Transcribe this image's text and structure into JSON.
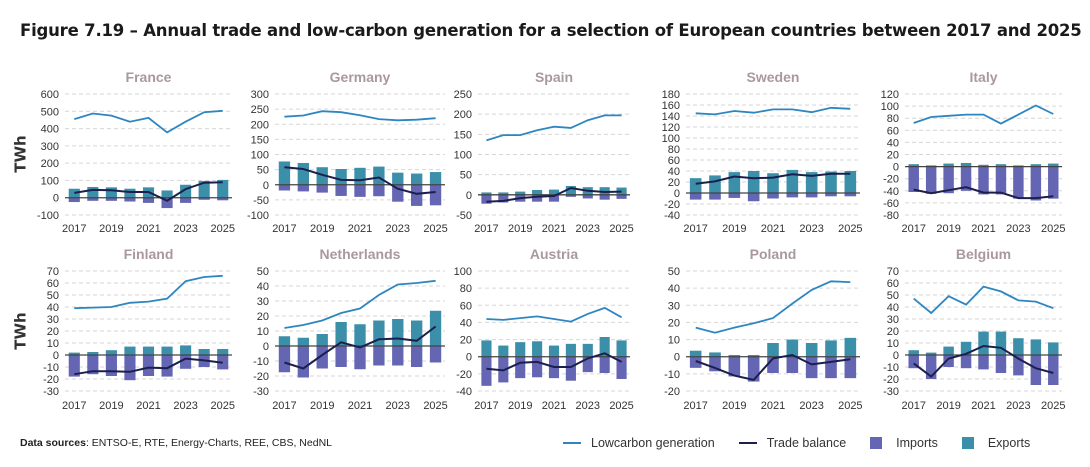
{
  "title": "Figure 7.19 – Annual trade and low-carbon generation for a selection of European countries between 2017 and 2025",
  "y_axis_label": "TWh",
  "sources": {
    "label": "Data sources",
    "text": ": ENTSO-E, RTE, Energy-Charts, REE, CBS, NedNL"
  },
  "legend": [
    {
      "name": "Lowcarbon generation",
      "kind": "line",
      "color": "#2e86c1"
    },
    {
      "name": "Trade balance",
      "kind": "line",
      "color": "#1c1f4d"
    },
    {
      "name": "Imports",
      "kind": "bar",
      "color": "#6466b3"
    },
    {
      "name": "Exports",
      "kind": "bar",
      "color": "#3b8fa9"
    }
  ],
  "chart_data": [
    {
      "type": "bar+line",
      "title": "France",
      "x": [
        2017,
        2018,
        2019,
        2020,
        2021,
        2022,
        2023,
        2024,
        2025
      ],
      "x_ticks": [
        2017,
        2019,
        2021,
        2023,
        2025
      ],
      "ylim": [
        -100,
        600
      ],
      "y_ticks": [
        -100,
        0,
        100,
        200,
        300,
        400,
        500,
        600
      ],
      "grid": true,
      "series": [
        {
          "name": "Lowcarbon generation",
          "values": [
            455,
            487,
            475,
            440,
            462,
            378,
            440,
            495,
            503
          ]
        },
        {
          "name": "Trade balance",
          "values": [
            28,
            45,
            43,
            33,
            33,
            -17,
            50,
            87,
            90
          ]
        },
        {
          "name": "Imports",
          "values": [
            -25,
            -18,
            -18,
            -22,
            -30,
            -60,
            -30,
            -12,
            -15
          ]
        },
        {
          "name": "Exports",
          "values": [
            52,
            62,
            60,
            52,
            60,
            42,
            75,
            97,
            103
          ]
        }
      ]
    },
    {
      "type": "bar+line",
      "title": "Germany",
      "x": [
        2017,
        2018,
        2019,
        2020,
        2021,
        2022,
        2023,
        2024,
        2025
      ],
      "x_ticks": [
        2017,
        2019,
        2021,
        2023,
        2025
      ],
      "ylim": [
        -100,
        300
      ],
      "y_ticks": [
        -100,
        -50,
        0,
        50,
        100,
        150,
        200,
        250,
        300
      ],
      "grid": true,
      "series": [
        {
          "name": "Lowcarbon generation",
          "values": [
            225,
            229,
            243,
            240,
            230,
            217,
            213,
            215,
            220
          ]
        },
        {
          "name": "Trade balance",
          "values": [
            58,
            52,
            33,
            16,
            15,
            24,
            -13,
            -30,
            -24
          ]
        },
        {
          "name": "Imports",
          "values": [
            -19,
            -22,
            -26,
            -37,
            -40,
            -38,
            -56,
            -70,
            -68
          ]
        },
        {
          "name": "Exports",
          "values": [
            77,
            72,
            58,
            52,
            56,
            60,
            40,
            37,
            42
          ]
        }
      ]
    },
    {
      "type": "bar+line",
      "title": "Spain",
      "x": [
        2017,
        2018,
        2019,
        2020,
        2021,
        2022,
        2023,
        2024,
        2025
      ],
      "x_ticks": [
        2017,
        2019,
        2021,
        2023,
        2025
      ],
      "ylim": [
        -50,
        250
      ],
      "y_ticks": [
        -50,
        0,
        50,
        100,
        150,
        200,
        250
      ],
      "grid": true,
      "series": [
        {
          "name": "Lowcarbon generation",
          "values": [
            135,
            148,
            148,
            160,
            169,
            166,
            185,
            197,
            197
          ]
        },
        {
          "name": "Trade balance",
          "values": [
            -17,
            -15,
            -8,
            -5,
            -3,
            17,
            10,
            7,
            8
          ]
        },
        {
          "name": "Imports",
          "values": [
            -22,
            -19,
            -17,
            -17,
            -17,
            -5,
            -9,
            -12,
            -10
          ]
        },
        {
          "name": "Exports",
          "values": [
            6,
            6,
            8,
            12,
            13,
            22,
            19,
            19,
            18
          ]
        }
      ]
    },
    {
      "type": "bar+line",
      "title": "Sweden",
      "x": [
        2017,
        2018,
        2019,
        2020,
        2021,
        2022,
        2023,
        2024,
        2025
      ],
      "x_ticks": [
        2017,
        2019,
        2021,
        2023,
        2025
      ],
      "ylim": [
        -40,
        180
      ],
      "y_ticks": [
        -40,
        -20,
        0,
        20,
        40,
        60,
        80,
        100,
        120,
        140,
        160,
        180
      ],
      "grid": true,
      "series": [
        {
          "name": "Lowcarbon generation",
          "values": [
            145,
            143,
            149,
            146,
            152,
            152,
            147,
            155,
            153
          ]
        },
        {
          "name": "Trade balance",
          "values": [
            17,
            21,
            30,
            27,
            28,
            34,
            31,
            35,
            35
          ]
        },
        {
          "name": "Imports",
          "values": [
            -12,
            -12,
            -9,
            -15,
            -10,
            -8,
            -8,
            -6,
            -6
          ]
        },
        {
          "name": "Exports",
          "values": [
            27,
            32,
            38,
            40,
            36,
            42,
            38,
            39,
            40
          ]
        }
      ]
    },
    {
      "type": "bar+line",
      "title": "Italy",
      "x": [
        2017,
        2018,
        2019,
        2020,
        2021,
        2022,
        2023,
        2024,
        2025
      ],
      "x_ticks": [
        2017,
        2019,
        2021,
        2023,
        2025
      ],
      "ylim": [
        -80,
        120
      ],
      "y_ticks": [
        -80,
        -60,
        -40,
        -20,
        0,
        20,
        40,
        60,
        80,
        100,
        120
      ],
      "grid": true,
      "series": [
        {
          "name": "Lowcarbon generation",
          "values": [
            72,
            82,
            84,
            86,
            86,
            71,
            86,
            101,
            87
          ]
        },
        {
          "name": "Trade balance",
          "values": [
            -38,
            -44,
            -39,
            -34,
            -43,
            -43,
            -52,
            -52,
            -49
          ]
        },
        {
          "name": "Imports",
          "values": [
            -42,
            -45,
            -44,
            -40,
            -46,
            -46,
            -53,
            -56,
            -53
          ]
        },
        {
          "name": "Exports",
          "values": [
            4,
            2,
            5,
            6,
            3,
            4,
            2,
            4,
            5
          ]
        }
      ]
    },
    {
      "type": "bar+line",
      "title": "Finland",
      "x": [
        2017,
        2018,
        2019,
        2020,
        2021,
        2022,
        2023,
        2024,
        2025
      ],
      "x_ticks": [
        2017,
        2019,
        2021,
        2023,
        2025
      ],
      "ylim": [
        -30,
        70
      ],
      "y_ticks": [
        -30,
        -20,
        -10,
        0,
        10,
        20,
        30,
        40,
        50,
        60,
        70
      ],
      "grid": true,
      "series": [
        {
          "name": "Lowcarbon generation",
          "values": [
            39,
            39.5,
            40,
            43.5,
            44.5,
            47,
            61.5,
            65,
            66
          ]
        },
        {
          "name": "Trade balance",
          "values": [
            -16,
            -13.5,
            -13.5,
            -14,
            -10.5,
            -11,
            -3,
            -4.5,
            -6.5
          ]
        },
        {
          "name": "Imports",
          "values": [
            -18,
            -16,
            -17.5,
            -21,
            -17.5,
            -18,
            -11.5,
            -10,
            -12
          ]
        },
        {
          "name": "Exports",
          "values": [
            2,
            2.5,
            4,
            7,
            7,
            7,
            8,
            5,
            5
          ]
        }
      ]
    },
    {
      "type": "bar+line",
      "title": "Netherlands",
      "x": [
        2017,
        2018,
        2019,
        2020,
        2021,
        2022,
        2023,
        2024,
        2025
      ],
      "x_ticks": [
        2017,
        2019,
        2021,
        2023,
        2025
      ],
      "ylim": [
        -30,
        50
      ],
      "y_ticks": [
        -30,
        -20,
        -10,
        0,
        10,
        20,
        30,
        40,
        50
      ],
      "grid": true,
      "series": [
        {
          "name": "Lowcarbon generation",
          "values": [
            12,
            14,
            17,
            22,
            25,
            34,
            41,
            42,
            43.5
          ]
        },
        {
          "name": "Trade balance",
          "values": [
            -11,
            -15,
            -6,
            2.5,
            -1,
            4.5,
            5,
            3.5,
            13
          ]
        },
        {
          "name": "Imports",
          "values": [
            -17.5,
            -21,
            -15,
            -14,
            -15.5,
            -13,
            -13,
            -14,
            -11
          ]
        },
        {
          "name": "Exports",
          "values": [
            6.5,
            5.5,
            8,
            16,
            14.5,
            17,
            18,
            17,
            23.5
          ]
        }
      ]
    },
    {
      "type": "bar+line",
      "title": "Austria",
      "x": [
        2017,
        2018,
        2019,
        2020,
        2021,
        2022,
        2023,
        2024,
        2025
      ],
      "x_ticks": [
        2017,
        2019,
        2021,
        2023,
        2025
      ],
      "ylim": [
        -40,
        100
      ],
      "y_ticks": [
        -40,
        -20,
        0,
        20,
        40,
        60,
        80,
        100
      ],
      "grid": true,
      "series": [
        {
          "name": "Lowcarbon generation",
          "values": [
            44,
            43,
            45,
            47,
            44,
            41,
            50,
            57,
            46
          ]
        },
        {
          "name": "Trade balance",
          "values": [
            -14,
            -16,
            -7,
            -6,
            -12,
            -12,
            -2,
            4,
            -6
          ]
        },
        {
          "name": "Imports",
          "values": [
            -34,
            -30,
            -25,
            -24,
            -25,
            -28,
            -18,
            -19,
            -26
          ]
        },
        {
          "name": "Exports",
          "values": [
            19,
            13,
            17,
            18,
            13,
            15,
            15,
            23,
            19
          ]
        }
      ]
    },
    {
      "type": "bar+line",
      "title": "Poland",
      "x": [
        2017,
        2018,
        2019,
        2020,
        2021,
        2022,
        2023,
        2024,
        2025
      ],
      "x_ticks": [
        2017,
        2019,
        2021,
        2023,
        2025
      ],
      "ylim": [
        -20,
        50
      ],
      "y_ticks": [
        -20,
        -10,
        0,
        10,
        20,
        30,
        40,
        50
      ],
      "grid": true,
      "series": [
        {
          "name": "Lowcarbon generation",
          "values": [
            17,
            14,
            17,
            19.5,
            22.5,
            31,
            39,
            44,
            43.5
          ]
        },
        {
          "name": "Trade balance",
          "values": [
            -2.5,
            -6.5,
            -11,
            -13.5,
            -1,
            1,
            -4.5,
            -3,
            -1.5
          ]
        },
        {
          "name": "Imports",
          "values": [
            -6.5,
            -8.5,
            -11.5,
            -14.5,
            -9.5,
            -9.5,
            -12.5,
            -12.5,
            -12.5
          ]
        },
        {
          "name": "Exports",
          "values": [
            3.5,
            2.5,
            1,
            1,
            8,
            10,
            8,
            9.5,
            11
          ]
        }
      ]
    },
    {
      "type": "bar+line",
      "title": "Belgium",
      "x": [
        2017,
        2018,
        2019,
        2020,
        2021,
        2022,
        2023,
        2024,
        2025
      ],
      "x_ticks": [
        2017,
        2019,
        2021,
        2023,
        2025
      ],
      "ylim": [
        -30,
        70
      ],
      "y_ticks": [
        -30,
        -20,
        -10,
        0,
        10,
        20,
        30,
        40,
        50,
        60,
        70
      ],
      "grid": true,
      "series": [
        {
          "name": "Lowcarbon generation",
          "values": [
            47,
            35,
            49,
            42,
            57,
            53,
            45.5,
            44.5,
            39
          ]
        },
        {
          "name": "Trade balance",
          "values": [
            -7,
            -18,
            -3,
            1,
            7.5,
            6,
            -3,
            -11,
            -15
          ]
        },
        {
          "name": "Imports",
          "values": [
            -11,
            -20,
            -10,
            -11,
            -12,
            -15,
            -17,
            -25,
            -25
          ]
        },
        {
          "name": "Exports",
          "values": [
            4,
            2,
            7,
            11,
            19.5,
            19.5,
            14,
            13,
            10.5
          ]
        }
      ]
    }
  ]
}
